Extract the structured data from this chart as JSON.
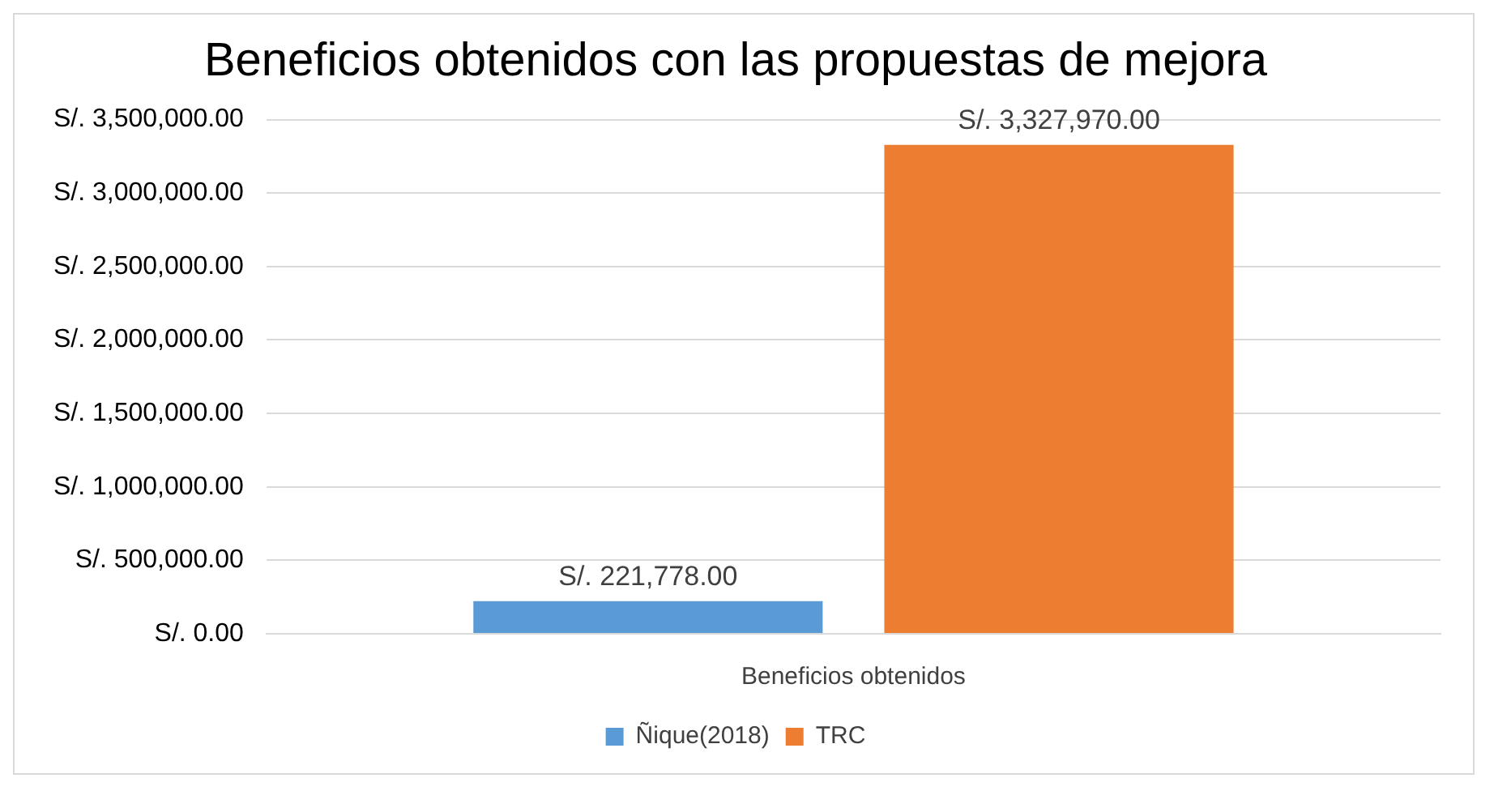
{
  "chart_data": {
    "type": "bar",
    "title": "Beneficios obtenidos con las propuestas de mejora",
    "categories": [
      "Beneficios obtenidos"
    ],
    "series": [
      {
        "name": "Ñique(2018)",
        "color": "#5b9bd5",
        "values": [
          221778
        ],
        "value_labels": [
          "S/. 221,778.00"
        ]
      },
      {
        "name": "TRC",
        "color": "#ed7d31",
        "values": [
          3327970
        ],
        "value_labels": [
          "S/. 3,327,970.00"
        ]
      }
    ],
    "ylim": [
      0,
      3500000
    ],
    "yticks": [
      {
        "value": 0,
        "label": "S/. 0.00"
      },
      {
        "value": 500000,
        "label": "S/. 500,000.00"
      },
      {
        "value": 1000000,
        "label": "S/. 1,000,000.00"
      },
      {
        "value": 1500000,
        "label": "S/. 1,500,000.00"
      },
      {
        "value": 2000000,
        "label": "S/. 2,000,000.00"
      },
      {
        "value": 2500000,
        "label": "S/. 2,500,000.00"
      },
      {
        "value": 3000000,
        "label": "S/. 3,000,000.00"
      },
      {
        "value": 3500000,
        "label": "S/. 3,500,000.00"
      }
    ],
    "grid": "y",
    "legend": "bottom"
  }
}
